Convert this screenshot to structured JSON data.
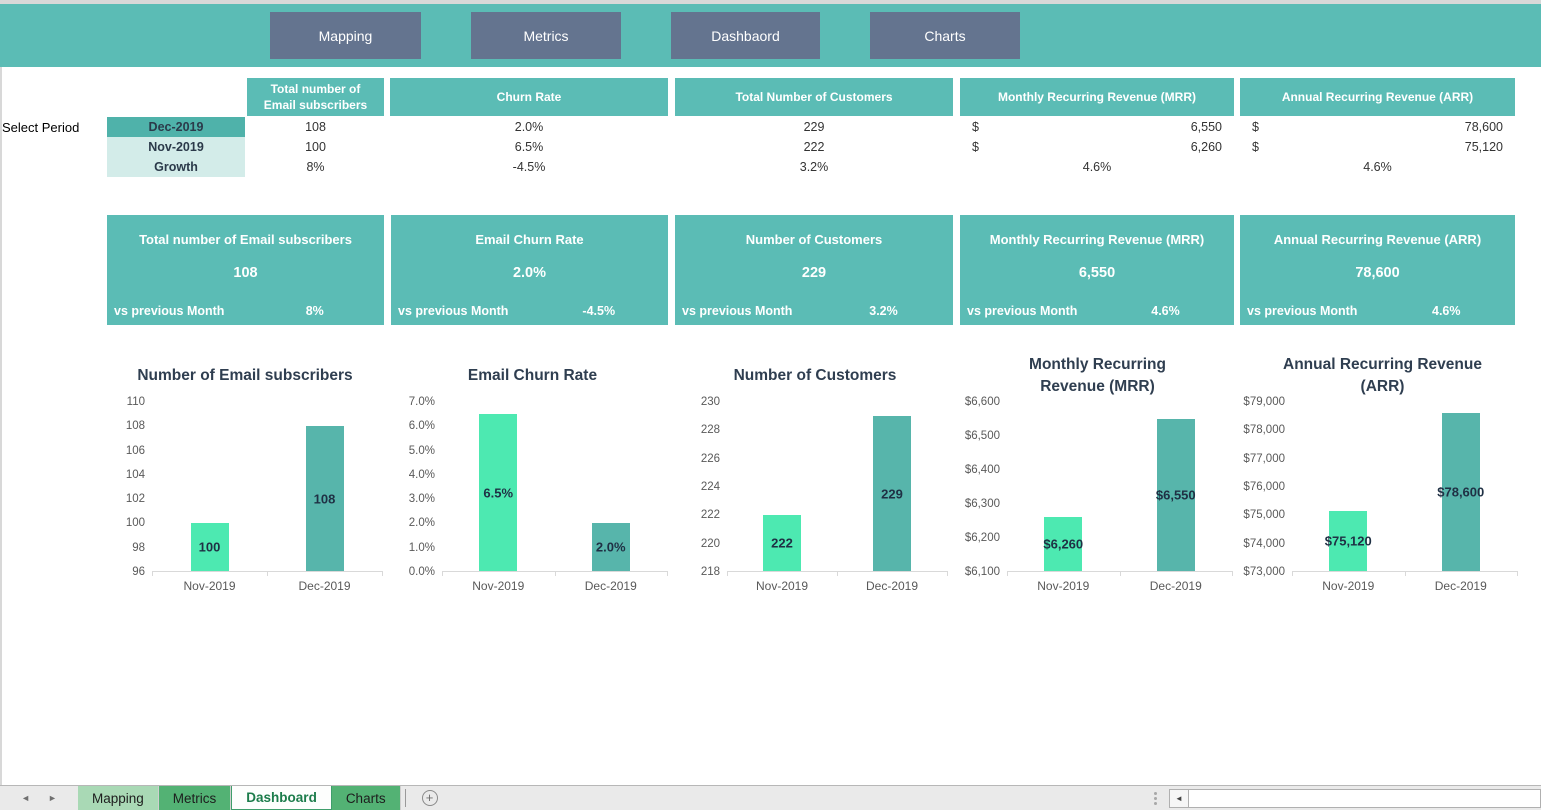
{
  "topbar": {
    "buttons": [
      {
        "label": "Mapping"
      },
      {
        "label": "Metrics"
      },
      {
        "label": "Dashbaord"
      },
      {
        "label": "Charts"
      }
    ]
  },
  "colors": {
    "teal": "#5bbcb5",
    "teal_dark": "#4fb2aa",
    "teal_light": "#d3ece9",
    "slate_button": "#64748f",
    "mint_bar": "#4de9b1",
    "teal_bar": "#57b5ab",
    "chart_title": "#2f3e50",
    "axis_text": "#595959",
    "tab_light_green": "#a9d9b5",
    "tab_green": "#53b274",
    "active_tab_text": "#1c7c4b"
  },
  "table": {
    "select_period_label": "Select Period",
    "periods": [
      "Dec-2019",
      "Nov-2019",
      "Growth"
    ],
    "col_subscribers": {
      "header": "Total number of Email subscribers",
      "dec": "108",
      "nov": "100",
      "growth": "8%"
    },
    "col_churn": {
      "header": "Churn Rate",
      "dec": "2.0%",
      "nov": "6.5%",
      "growth": "-4.5%"
    },
    "col_customers": {
      "header": "Total Number of Customers",
      "dec": "229",
      "nov": "222",
      "growth": "3.2%"
    },
    "col_mrr": {
      "header": "Monthly Recurring Revenue (MRR)",
      "currency": "$",
      "dec": "6,550",
      "nov": "6,260",
      "growth": "4.6%"
    },
    "col_arr": {
      "header": "Annual Recurring Revenue (ARR)",
      "currency": "$",
      "dec": "78,600",
      "nov": "75,120",
      "growth": "4.6%"
    }
  },
  "cards": [
    {
      "title": "Total number of Email subscribers",
      "value": "108",
      "vs_label": "vs previous Month",
      "vs_value": "8%"
    },
    {
      "title": "Email Churn Rate",
      "value": "2.0%",
      "vs_label": "vs previous Month",
      "vs_value": "-4.5%"
    },
    {
      "title": "Number of Customers",
      "value": "229",
      "vs_label": "vs previous Month",
      "vs_value": "3.2%"
    },
    {
      "title": "Monthly Recurring Revenue (MRR)",
      "value": "6,550",
      "vs_label": "vs previous Month",
      "vs_value": "4.6%"
    },
    {
      "title": "Annual Recurring Revenue (ARR)",
      "value": "78,600",
      "vs_label": "vs previous Month",
      "vs_value": "4.6%"
    }
  ],
  "chart_data": [
    {
      "type": "bar",
      "title": "Number of Email subscribers",
      "categories": [
        "Nov-2019",
        "Dec-2019"
      ],
      "values": [
        100,
        108
      ],
      "labels": [
        "100",
        "108"
      ],
      "ticks": [
        "110",
        "108",
        "106",
        "104",
        "102",
        "100",
        "98",
        "96"
      ],
      "ylim": [
        96,
        110
      ],
      "bar_colors": [
        "#4de9b1",
        "#57b5ab"
      ],
      "grid": false,
      "legend": false
    },
    {
      "type": "bar",
      "title": "Email Churn Rate",
      "categories": [
        "Nov-2019",
        "Dec-2019"
      ],
      "values": [
        6.5,
        2.0
      ],
      "labels": [
        "6.5%",
        "2.0%"
      ],
      "ticks": [
        "7.0%",
        "6.0%",
        "5.0%",
        "4.0%",
        "3.0%",
        "2.0%",
        "1.0%",
        "0.0%"
      ],
      "ylim": [
        0,
        7
      ],
      "bar_colors": [
        "#4de9b1",
        "#57b5ab"
      ],
      "grid": false,
      "legend": false
    },
    {
      "type": "bar",
      "title": "Number of Customers",
      "categories": [
        "Nov-2019",
        "Dec-2019"
      ],
      "values": [
        222,
        229
      ],
      "labels": [
        "222",
        "229"
      ],
      "ticks": [
        "230",
        "228",
        "226",
        "224",
        "222",
        "220",
        "218"
      ],
      "ylim": [
        218,
        230
      ],
      "bar_colors": [
        "#4de9b1",
        "#57b5ab"
      ],
      "grid": false,
      "legend": false
    },
    {
      "type": "bar",
      "title": "Monthly Recurring Revenue (MRR)",
      "categories": [
        "Nov-2019",
        "Dec-2019"
      ],
      "values": [
        6260,
        6550
      ],
      "labels": [
        "$6,260",
        "$6,550"
      ],
      "ticks": [
        "$6,600",
        "$6,500",
        "$6,400",
        "$6,300",
        "$6,200",
        "$6,100"
      ],
      "ylim": [
        6100,
        6600
      ],
      "bar_colors": [
        "#4de9b1",
        "#57b5ab"
      ],
      "grid": false,
      "legend": false
    },
    {
      "type": "bar",
      "title": "Annual Recurring Revenue (ARR)",
      "categories": [
        "Nov-2019",
        "Dec-2019"
      ],
      "values": [
        75120,
        78600
      ],
      "labels": [
        "$75,120",
        "$78,600"
      ],
      "ticks": [
        "$79,000",
        "$78,000",
        "$77,000",
        "$76,000",
        "$75,000",
        "$74,000",
        "$73,000"
      ],
      "ylim": [
        73000,
        79000
      ],
      "bar_colors": [
        "#4de9b1",
        "#57b5ab"
      ],
      "grid": false,
      "legend": false
    }
  ],
  "sheet_tabs": {
    "items": [
      {
        "label": "Mapping",
        "active": false
      },
      {
        "label": "Metrics",
        "active": false
      },
      {
        "label": "Dashboard",
        "active": true
      },
      {
        "label": "Charts",
        "active": false
      }
    ],
    "add_label": "+"
  },
  "scrollbar": {
    "left_arrow": "◄"
  },
  "sheet_nav": {
    "prev": "◄",
    "next": "►"
  }
}
